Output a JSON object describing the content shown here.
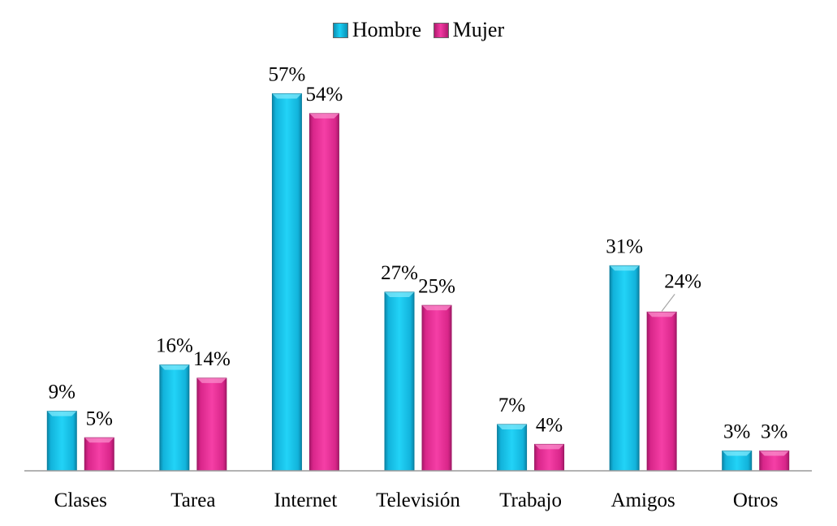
{
  "chart_data": {
    "type": "bar",
    "categories": [
      "Clases",
      "Tarea",
      "Internet",
      "Televisión",
      "Trabajo",
      "Amigos",
      "Otros"
    ],
    "series": [
      {
        "name": "Hombre",
        "values": [
          9,
          16,
          57,
          27,
          7,
          31,
          3
        ],
        "labels": [
          "9%",
          "16%",
          "57%",
          "27%",
          "7%",
          "31%",
          "3%"
        ]
      },
      {
        "name": "Mujer",
        "values": [
          5,
          14,
          54,
          25,
          4,
          24,
          3
        ],
        "labels": [
          "5%",
          "14%",
          "54%",
          "25%",
          "4%",
          "24%",
          "3%"
        ]
      }
    ],
    "ylim": [
      0,
      60
    ],
    "grid": false,
    "legend_position": "top-center",
    "colors": {
      "Hombre": "#17c3ec",
      "Mujer": "#ea2f95"
    }
  }
}
